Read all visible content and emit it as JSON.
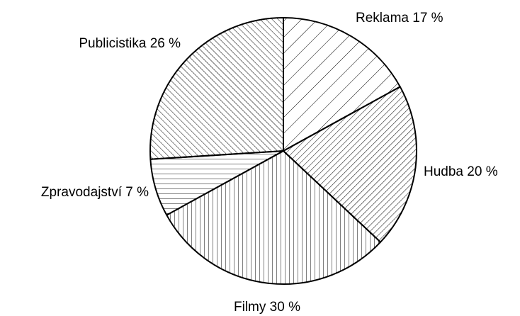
{
  "chart_data": {
    "type": "pie",
    "categories": [
      "Reklama",
      "Hudba",
      "Filmy",
      "Zpravodajství",
      "Publicistika"
    ],
    "values": [
      17,
      20,
      30,
      7,
      26
    ],
    "value_labels": [
      "17 %",
      "20 %",
      "30 %",
      "7 %",
      "26 %"
    ]
  }
}
